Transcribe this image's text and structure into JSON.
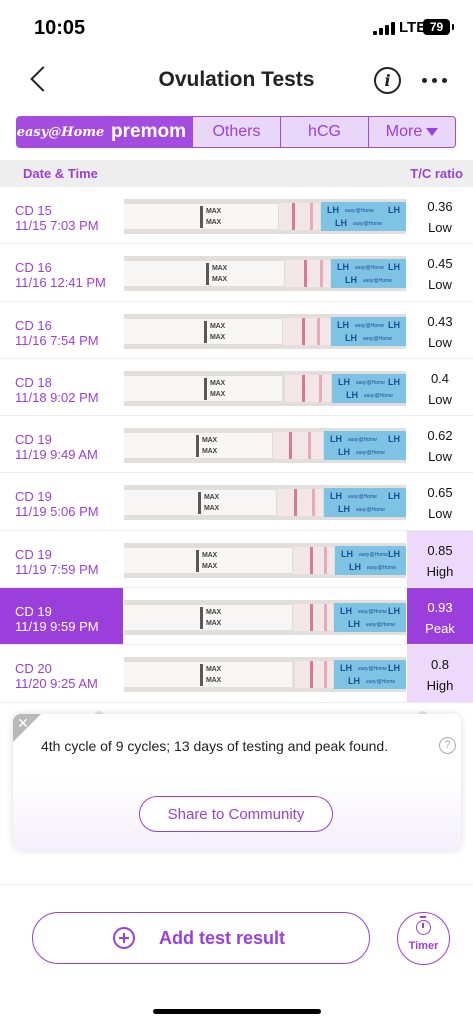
{
  "status_bar": {
    "time": "10:05",
    "network": "LTE",
    "battery": "79"
  },
  "nav": {
    "title": "Ovulation Tests",
    "info_icon": "info-icon",
    "more_icon": "more-icon"
  },
  "brand_tabs": {
    "easy_home": "easy@Home",
    "premom": "premom",
    "others": "Others",
    "hcg": "hCG",
    "more": "More"
  },
  "table": {
    "header_date": "Date & Time",
    "header_ratio": "T/C ratio",
    "strip_max_label": "MAX",
    "strip_lh_label": "LH",
    "strip_brand_label": "easy@Home",
    "rows": [
      {
        "cd": "CD 15",
        "datetime": "11/15 7:03 PM",
        "ratio": "0.36",
        "level": "Low"
      },
      {
        "cd": "CD 16",
        "datetime": "11/16 12:41 PM",
        "ratio": "0.45",
        "level": "Low"
      },
      {
        "cd": "CD 16",
        "datetime": "11/16 7:54 PM",
        "ratio": "0.43",
        "level": "Low"
      },
      {
        "cd": "CD 18",
        "datetime": "11/18 9:02 PM",
        "ratio": "0.4",
        "level": "Low"
      },
      {
        "cd": "CD 19",
        "datetime": "11/19 9:49 AM",
        "ratio": "0.62",
        "level": "Low"
      },
      {
        "cd": "CD 19",
        "datetime": "11/19 5:06 PM",
        "ratio": "0.65",
        "level": "Low"
      },
      {
        "cd": "CD 19",
        "datetime": "11/19 7:59 PM",
        "ratio": "0.85",
        "level": "High"
      },
      {
        "cd": "CD 19",
        "datetime": "11/19 9:59 PM",
        "ratio": "0.93",
        "level": "Peak",
        "selected": true
      },
      {
        "cd": "CD 20",
        "datetime": "11/20 9:25 AM",
        "ratio": "0.8",
        "level": "High"
      }
    ]
  },
  "summary": {
    "text": "4th cycle of 9 cycles; 13 days of testing and peak found.",
    "share_label": "Share to Community"
  },
  "actions": {
    "add_label": "Add test result",
    "timer_label": "Timer"
  },
  "colors": {
    "accent": "#9b3fdc",
    "high_bg": "#ecd9fb",
    "strip_blue": "#7ec3e3",
    "test_line": "#d97a95"
  }
}
